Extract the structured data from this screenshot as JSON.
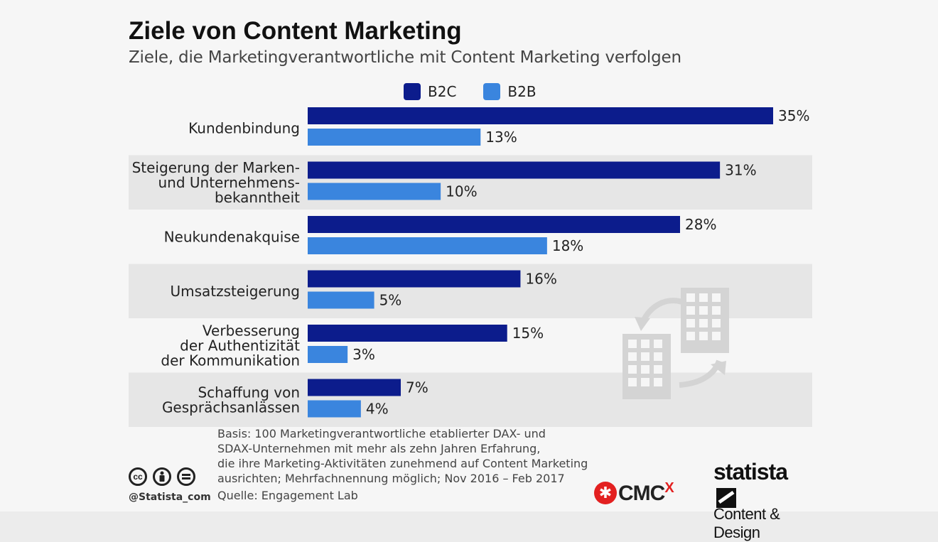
{
  "title": "Ziele von Content Marketing",
  "subtitle": "Ziele, die Marketingverantwortliche mit Content Marketing verfolgen",
  "colors": {
    "b2c": "#0c1c8c",
    "b2b": "#3a85de",
    "band": "#e6e6e6",
    "icon": "#d6d6d6"
  },
  "chart_data": {
    "type": "bar",
    "orientation": "horizontal",
    "title": "Ziele von Content Marketing",
    "subtitle": "Ziele, die Marketingverantwortliche mit Content Marketing verfolgen",
    "categories": [
      [
        "Kundenbindung"
      ],
      [
        "Steigerung der Marken-",
        "und Unternehmens-",
        "bekanntheit"
      ],
      [
        "Neukundenakquise"
      ],
      [
        "Umsatzsteigerung"
      ],
      [
        "Verbesserung",
        "der Authentizität",
        "der Kommunikation"
      ],
      [
        "Schaffung von",
        "Gesprächsanlässen"
      ]
    ],
    "series": [
      {
        "name": "B2C",
        "values": [
          35,
          31,
          28,
          16,
          15,
          7
        ]
      },
      {
        "name": "B2B",
        "values": [
          13,
          10,
          18,
          5,
          3,
          4
        ]
      }
    ],
    "value_labels": [
      [
        "35%",
        "31%",
        "28%",
        "16%",
        "15%",
        "7%"
      ],
      [
        "13%",
        "10%",
        "18%",
        "5%",
        "3%",
        "4%"
      ]
    ],
    "unit": "%",
    "xlim": [
      0,
      35
    ],
    "legend_position": "top",
    "grid": false,
    "alternating_bands": true
  },
  "footer": {
    "basis_lines": [
      "Basis: 100 Marketingverantwortliche etablierter DAX- und",
      "SDAX-Unternehmen mit mehr als zehn Jahren Erfahrung,",
      "die ihre Marketing-Aktivitäten zunehmend auf Content Marketing",
      "ausrichten; Mehrfachnennung möglich; Nov 2016 – Feb 2017"
    ],
    "source": "Quelle: Engagement Lab",
    "handle": "@Statista_com",
    "cc_icons": [
      "cc",
      "by",
      "nd"
    ]
  },
  "branding": {
    "cmcx": "CMC",
    "cmcx_sup": "X",
    "statista": "statista",
    "statista_sub": "Content & Design"
  }
}
